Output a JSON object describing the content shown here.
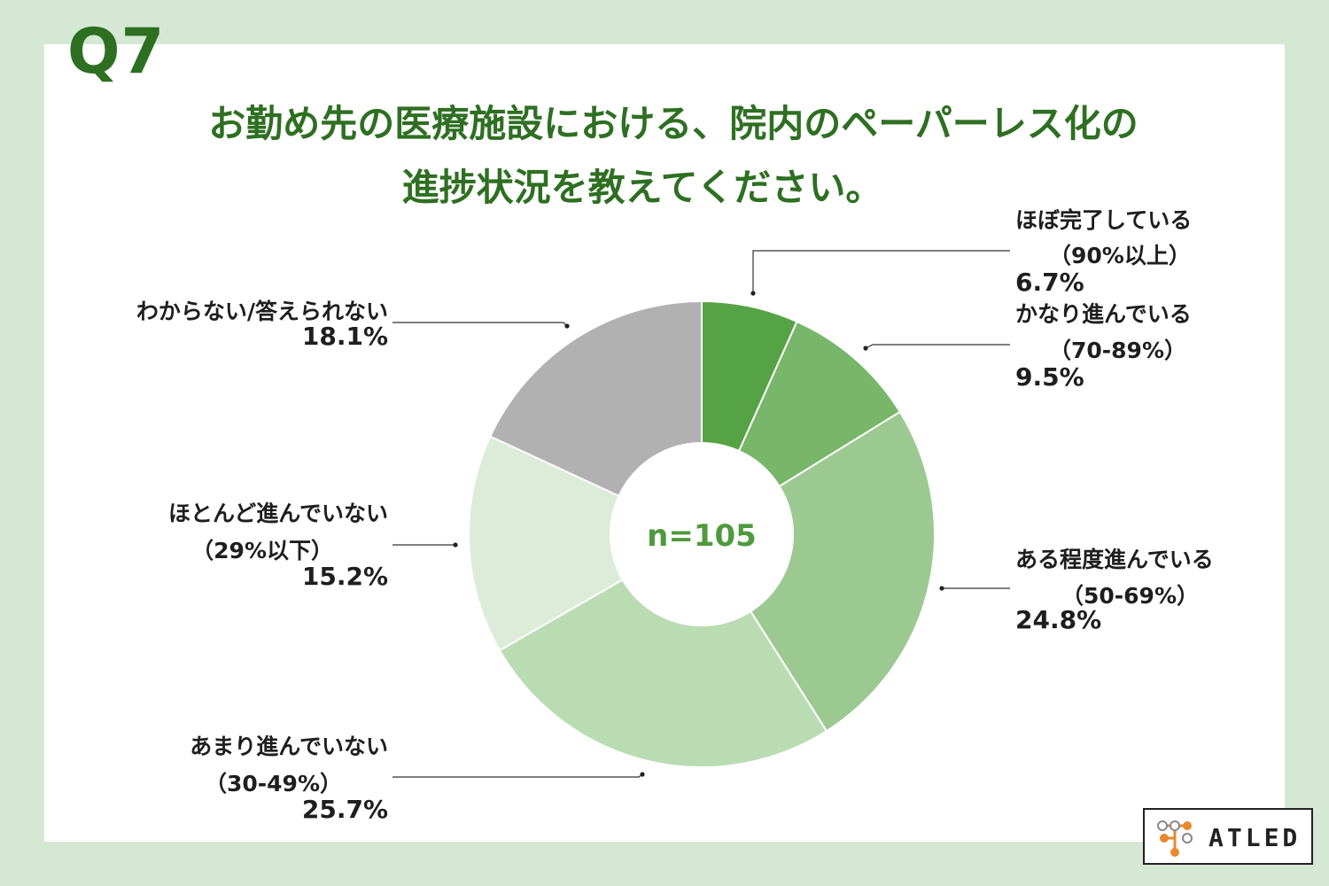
{
  "question_number": "Q7",
  "title_lines": [
    "お勤め先の医療施設における、院内のペーパーレス化の",
    "進捗状況を教えてください。"
  ],
  "center_label": "n=105",
  "logo_text": "ATLED",
  "colors": {
    "background": "#d5e8d4",
    "title": "#2e6f22",
    "center_label": "#4f9a3e"
  },
  "chart_data": {
    "type": "pie",
    "donut": true,
    "n": "n=105",
    "slices": [
      {
        "name_lines": [
          "ほぼ完了している",
          "（90%以上）"
        ],
        "value": 6.7,
        "label": "6.7%",
        "color": "#55a345"
      },
      {
        "name_lines": [
          "かなり進んでいる",
          "（70-89%）"
        ],
        "value": 9.5,
        "label": "9.5%",
        "color": "#78b66a"
      },
      {
        "name_lines": [
          "ある程度進んでいる",
          "（50-69%）"
        ],
        "value": 24.8,
        "label": "24.8%",
        "color": "#9cc991"
      },
      {
        "name_lines": [
          "あまり進んでいない",
          "（30-49%）"
        ],
        "value": 25.7,
        "label": "25.7%",
        "color": "#badcb3"
      },
      {
        "name_lines": [
          "ほとんど進んでいない",
          "（29%以下）"
        ],
        "value": 15.2,
        "label": "15.2%",
        "color": "#dcecd8"
      },
      {
        "name_lines": [
          "わからない/答えられない"
        ],
        "value": 18.1,
        "label": "18.1%",
        "color": "#b1b1b1"
      }
    ]
  }
}
